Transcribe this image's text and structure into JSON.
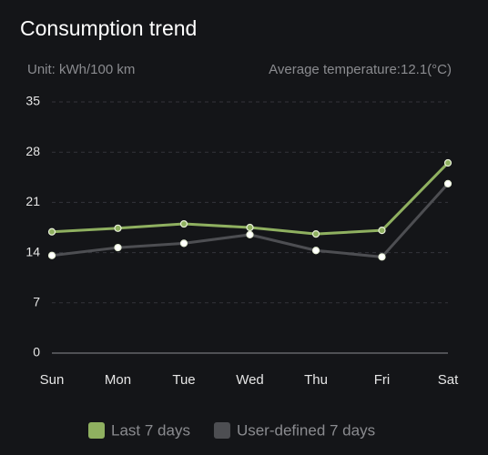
{
  "chart_data": {
    "type": "line",
    "title": "Consumption trend",
    "y_label": "Unit: kWh/100 km",
    "annotation": "Average temperature:12.1(°C)",
    "categories": [
      "Sun",
      "Mon",
      "Tue",
      "Wed",
      "Thu",
      "Fri",
      "Sat"
    ],
    "series": [
      {
        "name": "Last 7 days",
        "color": "#8fb060",
        "marker_color": "#8fb060",
        "values": [
          16.9,
          17.4,
          18.0,
          17.5,
          16.6,
          17.1,
          26.5
        ]
      },
      {
        "name": "User-defined 7 days",
        "color": "#4d4e52",
        "marker_color": "#ffffff",
        "values": [
          13.6,
          14.7,
          15.3,
          16.5,
          14.3,
          13.4,
          23.6
        ]
      }
    ],
    "ylim": [
      0,
      35
    ],
    "yticks": [
      0,
      7,
      14,
      21,
      28,
      35
    ],
    "grid": true
  }
}
